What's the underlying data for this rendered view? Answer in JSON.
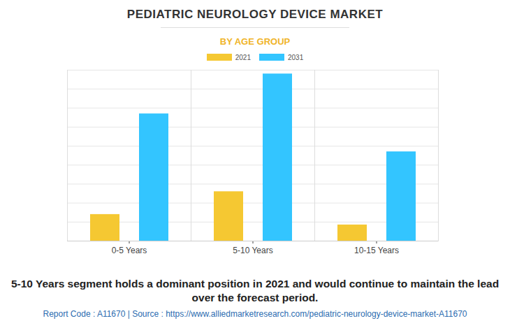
{
  "chart_data": {
    "type": "bar",
    "title": "PEDIATRIC NEUROLOGY DEVICE MARKET",
    "subtitle": "BY AGE GROUP",
    "categories": [
      "0-5 Years",
      "5-10 Years",
      "10-15 Years"
    ],
    "series": [
      {
        "name": "2021",
        "color": "#f5c832",
        "values": [
          1.4,
          2.6,
          0.85
        ]
      },
      {
        "name": "2031",
        "color": "#33c5ff",
        "values": [
          6.7,
          8.8,
          4.7
        ]
      }
    ],
    "ylim": [
      0,
      9
    ],
    "yticks": [
      0,
      1,
      2,
      3,
      4,
      5,
      6,
      7,
      8,
      9
    ],
    "grid": true,
    "legend": "top",
    "tick_labels": "x",
    "annotations": [
      "5-10 Years segment holds a dominant position in 2021 and would continue to maintain the lead over the forecast period.",
      "Report Code : A11670  |  Source : https://www.alliedmarketresearch.com/pediatric-neurology-device-market-A11670"
    ]
  }
}
